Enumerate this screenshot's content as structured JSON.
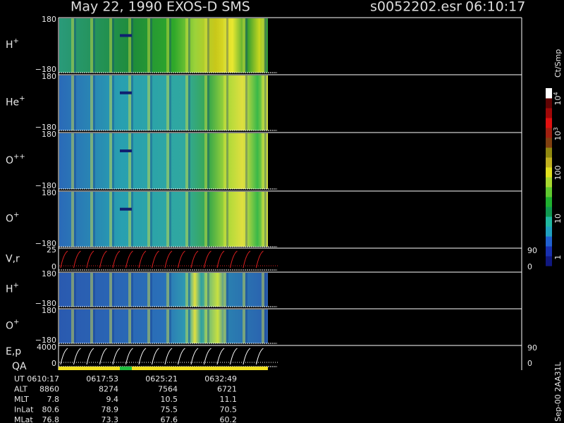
{
  "header": {
    "title": "May 22, 1990   EXOS-D SMS",
    "file": "s0052202.esr",
    "time": "06:10:17"
  },
  "panels": [
    {
      "label": "H",
      "sup": "+",
      "top": "180",
      "bottom": "−180"
    },
    {
      "label": "He",
      "sup": "+",
      "top": "180",
      "bottom": "−180"
    },
    {
      "label": "O",
      "sup": "++",
      "top": "180",
      "bottom": "−180"
    },
    {
      "label": "O",
      "sup": "+",
      "top": "180",
      "bottom": "−180"
    },
    {
      "label": "V,r",
      "top": "25",
      "bottom": "0",
      "right_top": "90",
      "right_bottom": "0"
    },
    {
      "label": "H",
      "sup": "+",
      "top": "180",
      "bottom": "−180"
    },
    {
      "label": "O",
      "sup": "+",
      "top": "180",
      "bottom": "−180"
    },
    {
      "label": "E,p",
      "label2": "QA",
      "top": "4000",
      "bottom": "0",
      "right_top": "90",
      "right_bottom": "0"
    }
  ],
  "colorbar": {
    "unit": "Ct/Smp",
    "labels": [
      {
        "base": "10",
        "exp": "4"
      },
      {
        "base": "10",
        "exp": "3"
      },
      {
        "base": "100"
      },
      {
        "base": "10"
      },
      {
        "base": "1"
      }
    ]
  },
  "footer": {
    "rows": [
      [
        "UT",
        "0610:17",
        "0617:53",
        "0625:21",
        "0632:49"
      ],
      [
        "ALT",
        "8860",
        "8274",
        "7564",
        "6721"
      ],
      [
        "MLT",
        "7.8",
        "9.4",
        "10.5",
        "11.1"
      ],
      [
        "InLat",
        "80.6",
        "78.9",
        "75.5",
        "70.5"
      ],
      [
        "MLat",
        "76.8",
        "73.3",
        "67.6",
        "60.2"
      ]
    ]
  },
  "stamp": "Sep-00 2AA31L"
}
